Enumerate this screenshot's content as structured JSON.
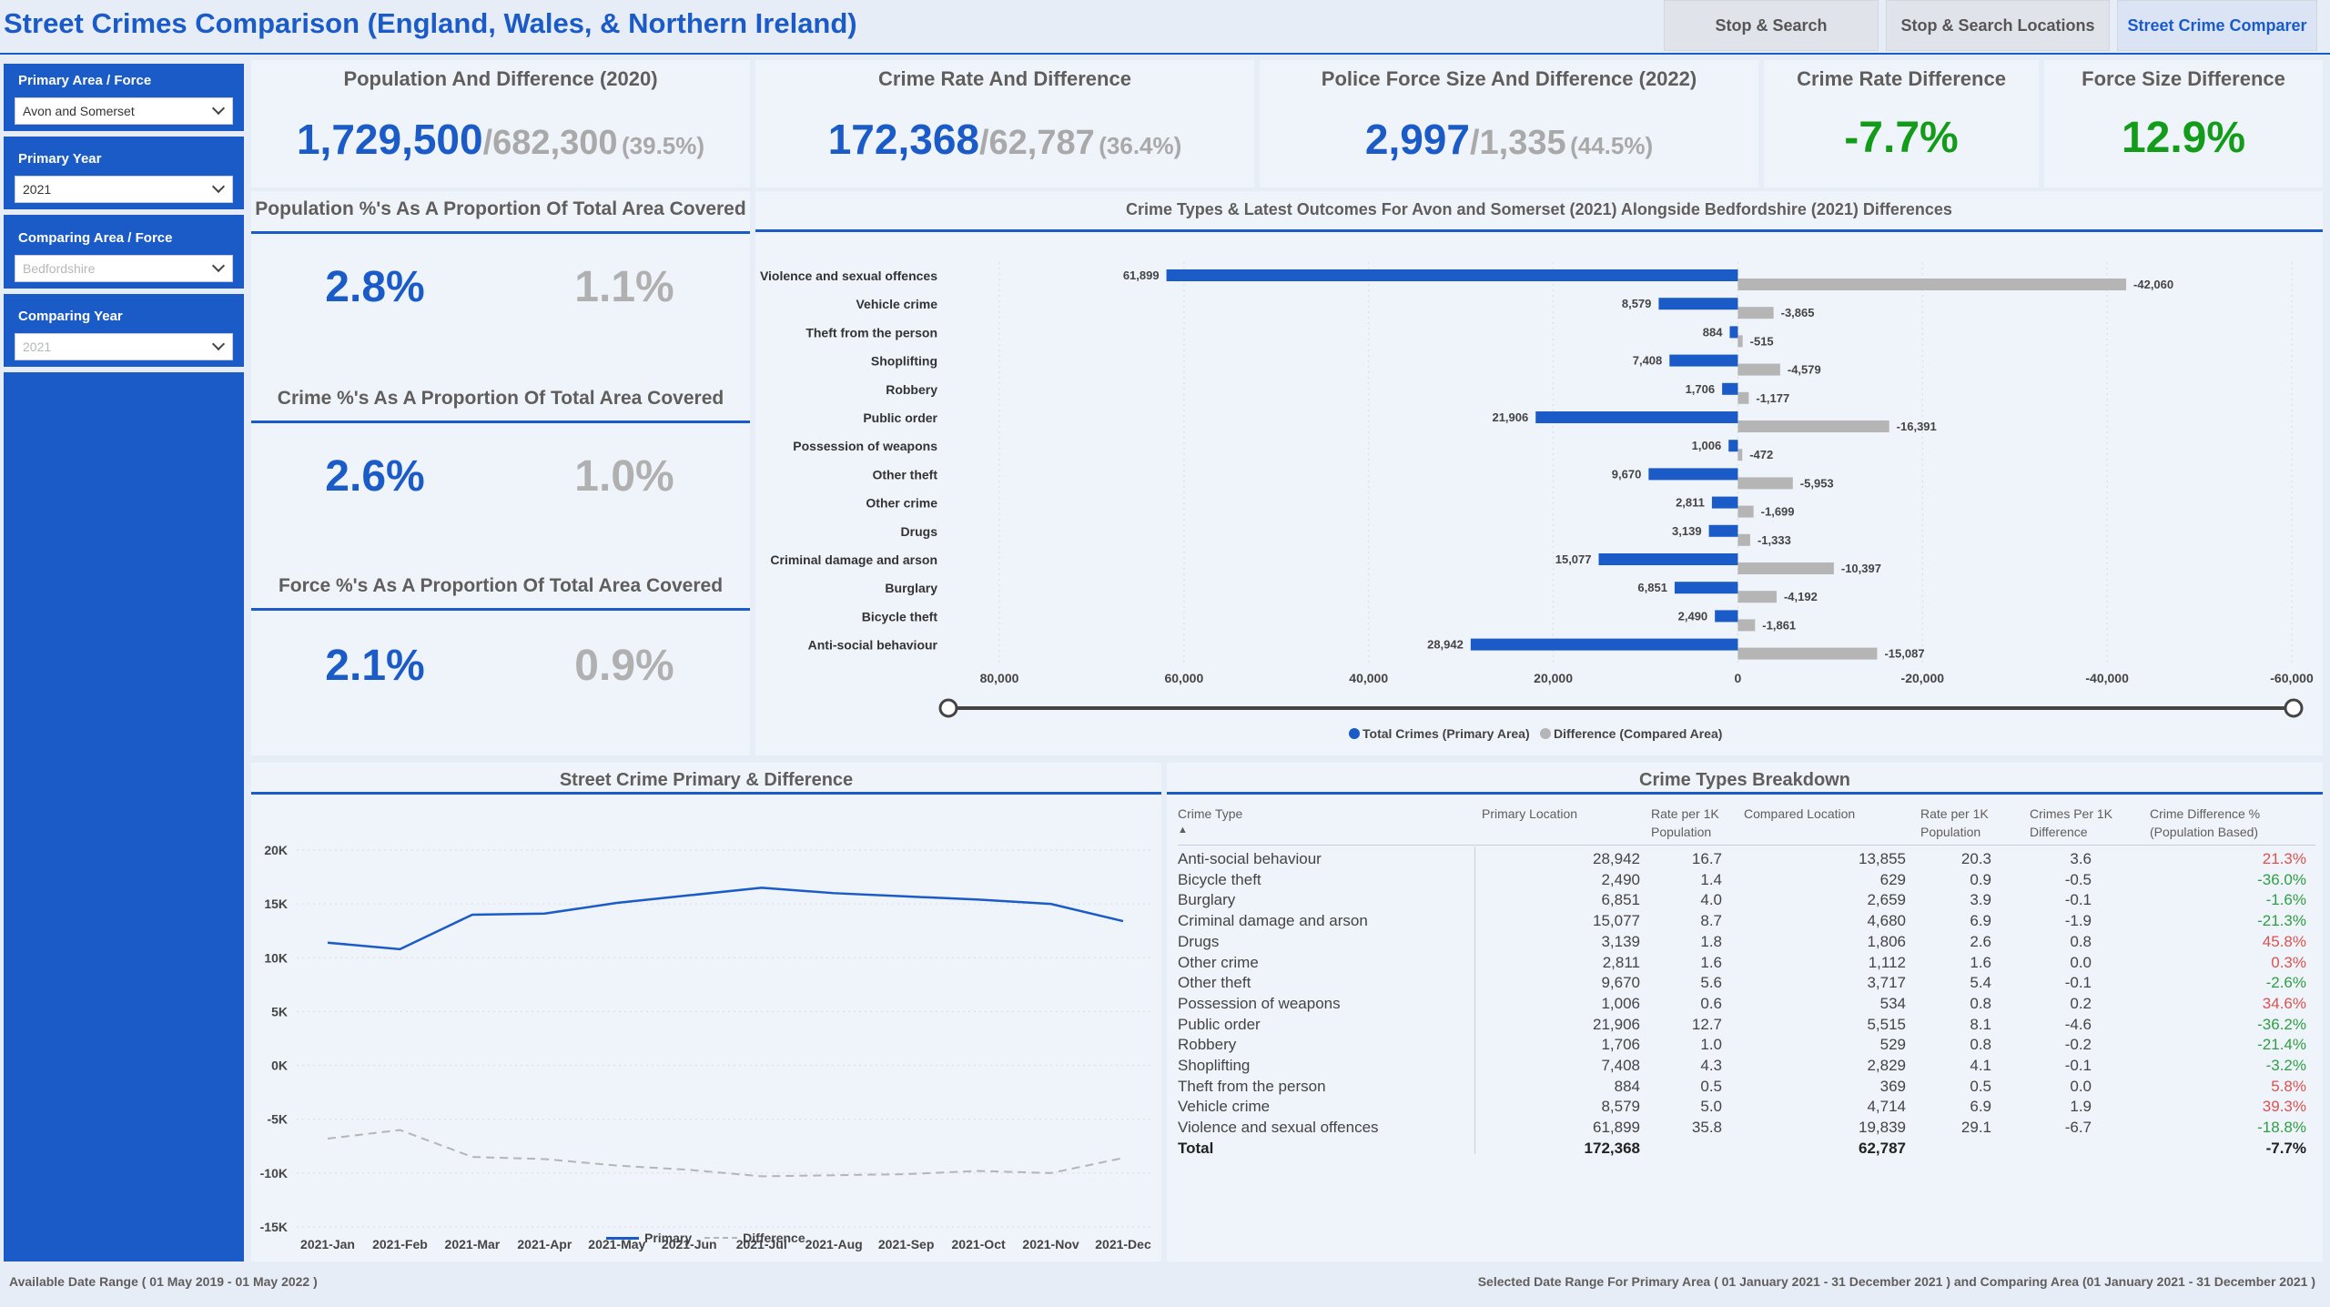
{
  "header": {
    "title": "Street Crimes Comparison (England, Wales, & Northern Ireland)",
    "tabs": [
      {
        "label": "Stop & Search"
      },
      {
        "label": "Stop & Search Locations"
      },
      {
        "label": "Street Crime Comparer"
      }
    ]
  },
  "sidebar": {
    "slicers": [
      {
        "label": "Primary Area / Force",
        "value": "Avon and Somerset"
      },
      {
        "label": "Primary Year",
        "value": "2021"
      },
      {
        "label": "Comparing Area / Force",
        "value": "Bedfordshire"
      },
      {
        "label": "Comparing Year",
        "value": "2021"
      }
    ]
  },
  "kpis": {
    "population": {
      "title": "Population And Difference (2020)",
      "main": "1,729,500",
      "diff": "/682,300",
      "pct": "(39.5%)"
    },
    "crime_rate": {
      "title": "Crime Rate And Difference",
      "main": "172,368",
      "diff": "/62,787",
      "pct": "(36.4%)"
    },
    "force_size": {
      "title": "Police Force Size And Difference (2022)",
      "main": "2,997",
      "diff": "/1,335",
      "pct": "(44.5%)"
    },
    "crime_rate_diff": {
      "title": "Crime Rate Difference",
      "value": "-7.7%"
    },
    "force_size_diff": {
      "title": "Force Size Difference",
      "value": "12.9%"
    }
  },
  "proportions": [
    {
      "title": "Population %'s As A Proportion Of Total Area Covered",
      "primary": "2.8%",
      "compared": "1.1%"
    },
    {
      "title": "Crime %'s As A Proportion Of Total Area Covered",
      "primary": "2.6%",
      "compared": "1.0%"
    },
    {
      "title": "Force %'s As A Proportion Of Total Area Covered",
      "primary": "2.1%",
      "compared": "0.9%"
    }
  ],
  "colors": {
    "primary": "#1a5bc8",
    "compared": "#b5b5b5",
    "positive": "#139c1a",
    "neg_red": "#d9534f",
    "neg_green": "#2e9e44"
  },
  "chart_data": [
    {
      "type": "bar",
      "title": "Crime Types & Latest Outcomes For Avon and Somerset (2021) Alongside Bedfordshire (2021) Differences",
      "orientation": "horizontal",
      "categories": [
        "Violence and sexual offences",
        "Vehicle crime",
        "Theft from the person",
        "Shoplifting",
        "Robbery",
        "Public order",
        "Possession of weapons",
        "Other theft",
        "Other crime",
        "Drugs",
        "Criminal damage and arson",
        "Burglary",
        "Bicycle theft",
        "Anti-social behaviour"
      ],
      "series": [
        {
          "name": "Total Crimes (Primary Area)",
          "values": [
            61899,
            8579,
            884,
            7408,
            1706,
            21906,
            1006,
            9670,
            2811,
            3139,
            15077,
            6851,
            2490,
            28942
          ],
          "labels": [
            "61,899",
            "8,579",
            "884",
            "7,408",
            "1,706",
            "21,906",
            "1,006",
            "9,670",
            "2,811",
            "3,139",
            "15,077",
            "6,851",
            "2,490",
            "28,942"
          ]
        },
        {
          "name": "Difference (Compared Area)",
          "values": [
            -42060,
            -3865,
            -515,
            -4579,
            -1177,
            -16391,
            -472,
            -5953,
            -1699,
            -1333,
            -10397,
            -4192,
            -1861,
            -15087
          ],
          "labels": [
            "-42,060",
            "-3,865",
            "-515",
            "-4,579",
            "-1,177",
            "-16,391",
            "-472",
            "-5,953",
            "-1,699",
            "-1,333",
            "-10,397",
            "-4,192",
            "-1,861",
            "-15,087"
          ]
        }
      ],
      "x_axis": {
        "reversed": true,
        "range": [
          80000,
          -60000
        ],
        "ticks": [
          "80,000",
          "60,000",
          "40,000",
          "20,000",
          "0",
          "-20,000",
          "-40,000",
          "-60,000"
        ],
        "tick_values": [
          80000,
          60000,
          40000,
          20000,
          0,
          -20000,
          -40000,
          -60000
        ]
      },
      "legend": [
        {
          "label": "Total Crimes (Primary Area)"
        },
        {
          "label": "Difference (Compared Area)"
        }
      ],
      "legend_position": "bottom",
      "grid": true
    },
    {
      "type": "line",
      "title": "Street Crime Primary & Difference",
      "categories": [
        "2021-Jan",
        "2021-Feb",
        "2021-Mar",
        "2021-Apr",
        "2021-May",
        "2021-Jun",
        "2021-Jul",
        "2021-Aug",
        "2021-Sep",
        "2021-Oct",
        "2021-Nov",
        "2021-Dec"
      ],
      "series": [
        {
          "name": "Primary",
          "values": [
            11400,
            10800,
            14000,
            14100,
            15100,
            15800,
            16500,
            16000,
            15700,
            15400,
            15000,
            13400
          ]
        },
        {
          "name": "Difference",
          "values": [
            -6800,
            -6000,
            -8500,
            -8700,
            -9300,
            -9700,
            -10300,
            -10200,
            -10100,
            -9800,
            -10000,
            -8600
          ]
        }
      ],
      "y_axis": {
        "range": [
          -15000,
          20000
        ],
        "ticks": [
          "20K",
          "15K",
          "10K",
          "5K",
          "0K",
          "-5K",
          "-10K",
          "-15K"
        ],
        "tick_values": [
          20000,
          15000,
          10000,
          5000,
          0,
          -5000,
          -10000,
          -15000
        ]
      },
      "legend": [
        {
          "label": "Primary"
        },
        {
          "label": "Difference"
        }
      ],
      "legend_position": "bottom",
      "grid": true
    }
  ],
  "breakdown": {
    "title": "Crime Types Breakdown",
    "headers": {
      "crime_type": "Crime Type",
      "primary": "Primary Location",
      "rate1": "Rate per 1K",
      "rate1b": "Population",
      "compared": "Compared Location",
      "rate2": "Rate per 1K",
      "rate2b": "Population",
      "diff": "Crimes Per 1K",
      "diffb": "Difference",
      "pct": "Crime Difference %",
      "pctb": "(Population Based)"
    },
    "sort_indicator": "▲",
    "rows": [
      {
        "type": "Anti-social behaviour",
        "primary": "28,942",
        "rate1": "16.7",
        "compared": "13,855",
        "rate2": "20.3",
        "diff": "3.6",
        "pct": "21.3%",
        "pct_color": "red"
      },
      {
        "type": "Bicycle theft",
        "primary": "2,490",
        "rate1": "1.4",
        "compared": "629",
        "rate2": "0.9",
        "diff": "-0.5",
        "pct": "-36.0%",
        "pct_color": "green"
      },
      {
        "type": "Burglary",
        "primary": "6,851",
        "rate1": "4.0",
        "compared": "2,659",
        "rate2": "3.9",
        "diff": "-0.1",
        "pct": "-1.6%",
        "pct_color": "green"
      },
      {
        "type": "Criminal damage and arson",
        "primary": "15,077",
        "rate1": "8.7",
        "compared": "4,680",
        "rate2": "6.9",
        "diff": "-1.9",
        "pct": "-21.3%",
        "pct_color": "green"
      },
      {
        "type": "Drugs",
        "primary": "3,139",
        "rate1": "1.8",
        "compared": "1,806",
        "rate2": "2.6",
        "diff": "0.8",
        "pct": "45.8%",
        "pct_color": "red"
      },
      {
        "type": "Other crime",
        "primary": "2,811",
        "rate1": "1.6",
        "compared": "1,112",
        "rate2": "1.6",
        "diff": "0.0",
        "pct": "0.3%",
        "pct_color": "red"
      },
      {
        "type": "Other theft",
        "primary": "9,670",
        "rate1": "5.6",
        "compared": "3,717",
        "rate2": "5.4",
        "diff": "-0.1",
        "pct": "-2.6%",
        "pct_color": "green"
      },
      {
        "type": "Possession of weapons",
        "primary": "1,006",
        "rate1": "0.6",
        "compared": "534",
        "rate2": "0.8",
        "diff": "0.2",
        "pct": "34.6%",
        "pct_color": "red"
      },
      {
        "type": "Public order",
        "primary": "21,906",
        "rate1": "12.7",
        "compared": "5,515",
        "rate2": "8.1",
        "diff": "-4.6",
        "pct": "-36.2%",
        "pct_color": "green"
      },
      {
        "type": "Robbery",
        "primary": "1,706",
        "rate1": "1.0",
        "compared": "529",
        "rate2": "0.8",
        "diff": "-0.2",
        "pct": "-21.4%",
        "pct_color": "green"
      },
      {
        "type": "Shoplifting",
        "primary": "7,408",
        "rate1": "4.3",
        "compared": "2,829",
        "rate2": "4.1",
        "diff": "-0.1",
        "pct": "-3.2%",
        "pct_color": "green"
      },
      {
        "type": "Theft from the person",
        "primary": "884",
        "rate1": "0.5",
        "compared": "369",
        "rate2": "0.5",
        "diff": "0.0",
        "pct": "5.8%",
        "pct_color": "red"
      },
      {
        "type": "Vehicle crime",
        "primary": "8,579",
        "rate1": "5.0",
        "compared": "4,714",
        "rate2": "6.9",
        "diff": "1.9",
        "pct": "39.3%",
        "pct_color": "red"
      },
      {
        "type": "Violence and sexual offences",
        "primary": "61,899",
        "rate1": "35.8",
        "compared": "19,839",
        "rate2": "29.1",
        "diff": "-6.7",
        "pct": "-18.8%",
        "pct_color": "green"
      }
    ],
    "total": {
      "type": "Total",
      "primary": "172,368",
      "rate1": "",
      "compared": "62,787",
      "rate2": "",
      "diff": "",
      "pct": "-7.7%"
    }
  },
  "footer": {
    "left": "Available Date Range ( 01 May 2019 - 01 May 2022 )",
    "right": "Selected Date Range For Primary Area ( 01 January 2021 - 31 December 2021 ) and Comparing Area (01 January 2021 - 31 December 2021 )"
  }
}
